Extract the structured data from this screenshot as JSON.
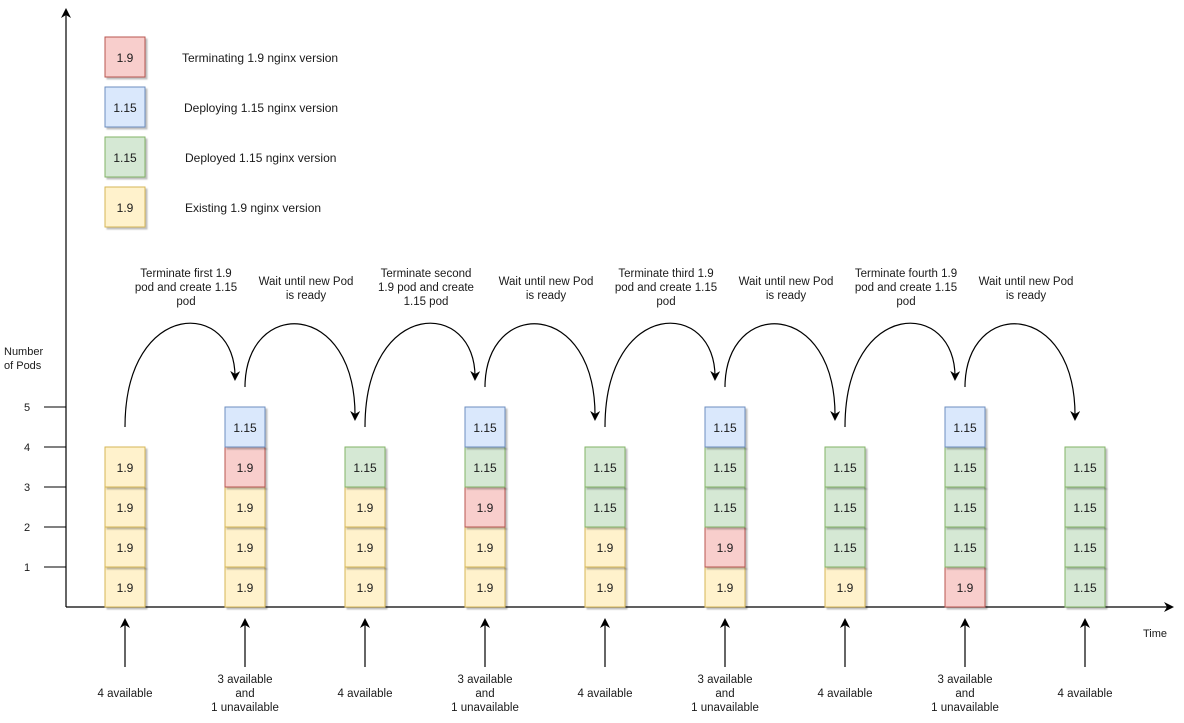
{
  "colors": {
    "terminating": "#f8cecc",
    "terminating_border": "#b85450",
    "deploying": "#dae8fc",
    "deploying_border": "#6c8ebf",
    "deployed": "#d5e8d4",
    "deployed_border": "#82b366",
    "existing": "#fff2cc",
    "existing_border": "#d6b656",
    "axis": "#000000"
  },
  "legend": [
    {
      "state": "terminating",
      "label": "1.9",
      "text": "Terminating 1.9 nginx version"
    },
    {
      "state": "deploying",
      "label": "1.15",
      "text": "Deploying 1.15 nginx version"
    },
    {
      "state": "deployed",
      "label": "1.15",
      "text": "Deployed 1.15 nginx version"
    },
    {
      "state": "existing",
      "label": "1.9",
      "text": "Existing 1.9 nginx version"
    }
  ],
  "axes": {
    "y_title": [
      "Number",
      "of Pods"
    ],
    "y_ticks": [
      "5",
      "4",
      "3",
      "2",
      "1"
    ],
    "x_title": "Time"
  },
  "columns": [
    {
      "pods": [
        {
          "s": "existing",
          "v": "1.9"
        },
        {
          "s": "existing",
          "v": "1.9"
        },
        {
          "s": "existing",
          "v": "1.9"
        },
        {
          "s": "existing",
          "v": "1.9"
        }
      ],
      "availability": [
        "4 available"
      ]
    },
    {
      "pods": [
        {
          "s": "existing",
          "v": "1.9"
        },
        {
          "s": "existing",
          "v": "1.9"
        },
        {
          "s": "existing",
          "v": "1.9"
        },
        {
          "s": "terminating",
          "v": "1.9"
        },
        {
          "s": "deploying",
          "v": "1.15"
        }
      ],
      "availability": [
        "3 available",
        "and",
        "1 unavailable"
      ]
    },
    {
      "pods": [
        {
          "s": "existing",
          "v": "1.9"
        },
        {
          "s": "existing",
          "v": "1.9"
        },
        {
          "s": "existing",
          "v": "1.9"
        },
        {
          "s": "deployed",
          "v": "1.15"
        }
      ],
      "availability": [
        "4 available"
      ]
    },
    {
      "pods": [
        {
          "s": "existing",
          "v": "1.9"
        },
        {
          "s": "existing",
          "v": "1.9"
        },
        {
          "s": "terminating",
          "v": "1.9"
        },
        {
          "s": "deployed",
          "v": "1.15"
        },
        {
          "s": "deploying",
          "v": "1.15"
        }
      ],
      "availability": [
        "3 available",
        "and",
        "1 unavailable"
      ]
    },
    {
      "pods": [
        {
          "s": "existing",
          "v": "1.9"
        },
        {
          "s": "existing",
          "v": "1.9"
        },
        {
          "s": "deployed",
          "v": "1.15"
        },
        {
          "s": "deployed",
          "v": "1.15"
        }
      ],
      "availability": [
        "4 available"
      ]
    },
    {
      "pods": [
        {
          "s": "existing",
          "v": "1.9"
        },
        {
          "s": "terminating",
          "v": "1.9"
        },
        {
          "s": "deployed",
          "v": "1.15"
        },
        {
          "s": "deployed",
          "v": "1.15"
        },
        {
          "s": "deploying",
          "v": "1.15"
        }
      ],
      "availability": [
        "3 available",
        "and",
        "1 unavailable"
      ]
    },
    {
      "pods": [
        {
          "s": "existing",
          "v": "1.9"
        },
        {
          "s": "deployed",
          "v": "1.15"
        },
        {
          "s": "deployed",
          "v": "1.15"
        },
        {
          "s": "deployed",
          "v": "1.15"
        }
      ],
      "availability": [
        "4 available"
      ]
    },
    {
      "pods": [
        {
          "s": "terminating",
          "v": "1.9"
        },
        {
          "s": "deployed",
          "v": "1.15"
        },
        {
          "s": "deployed",
          "v": "1.15"
        },
        {
          "s": "deployed",
          "v": "1.15"
        },
        {
          "s": "deploying",
          "v": "1.15"
        }
      ],
      "availability": [
        "3 available",
        "and",
        "1 unavailable"
      ]
    },
    {
      "pods": [
        {
          "s": "deployed",
          "v": "1.15"
        },
        {
          "s": "deployed",
          "v": "1.15"
        },
        {
          "s": "deployed",
          "v": "1.15"
        },
        {
          "s": "deployed",
          "v": "1.15"
        }
      ],
      "availability": [
        "4 available"
      ]
    }
  ],
  "steps": [
    {
      "text": [
        "Terminate first 1.9",
        "pod and create 1.15",
        "pod"
      ]
    },
    {
      "text": [
        "Wait until new Pod",
        "is ready"
      ]
    },
    {
      "text": [
        "Terminate second",
        "1.9 pod and create",
        "1.15 pod"
      ]
    },
    {
      "text": [
        "Wait until new Pod",
        "is ready"
      ]
    },
    {
      "text": [
        "Terminate third 1.9",
        "pod and create 1.15",
        "pod"
      ]
    },
    {
      "text": [
        "Wait until new Pod",
        "is ready"
      ]
    },
    {
      "text": [
        "Terminate fourth 1.9",
        "pod and create 1.15",
        "pod"
      ]
    },
    {
      "text": [
        "Wait until new Pod",
        "is ready"
      ]
    }
  ]
}
